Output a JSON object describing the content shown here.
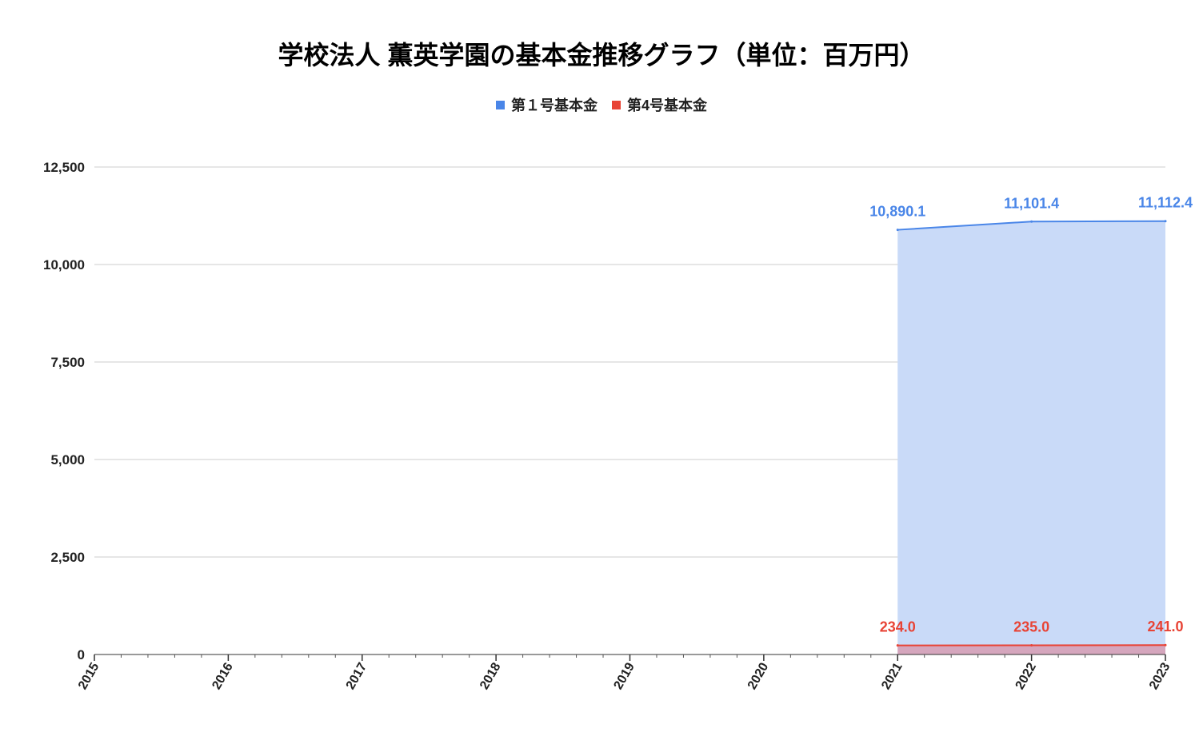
{
  "chart_data": {
    "type": "area",
    "title": "学校法人 薫英学園の基本金推移グラフ（単位：百万円）",
    "categories": [
      "2015",
      "2016",
      "2017",
      "2018",
      "2019",
      "2020",
      "2021",
      "2022",
      "2023"
    ],
    "series": [
      {
        "name": "第１号基本金",
        "color": "#4a86e8",
        "fill": "#c9daf8",
        "values": [
          null,
          null,
          null,
          null,
          null,
          null,
          10890.1,
          11101.4,
          11112.4
        ],
        "labels": [
          "",
          "",
          "",
          "",
          "",
          "",
          "10,890.1",
          "11,101.4",
          "11,112.4"
        ]
      },
      {
        "name": "第4号基本金",
        "color": "#e84335",
        "fill": "#d5a6bd",
        "values": [
          null,
          null,
          null,
          null,
          null,
          null,
          234.0,
          235.0,
          241.0
        ],
        "labels": [
          "",
          "",
          "",
          "",
          "",
          "",
          "234.0",
          "235.0",
          "241.0"
        ]
      }
    ],
    "y_ticks": [
      {
        "value": 0,
        "label": "0"
      },
      {
        "value": 2500,
        "label": "2,500"
      },
      {
        "value": 5000,
        "label": "5,000"
      },
      {
        "value": 7500,
        "label": "7,500"
      },
      {
        "value": 10000,
        "label": "10,000"
      },
      {
        "value": 12500,
        "label": "12,500"
      }
    ],
    "ylim": [
      0,
      12500
    ],
    "xlabel": "",
    "ylabel": "",
    "grid": true,
    "legend_position": "top-center"
  }
}
